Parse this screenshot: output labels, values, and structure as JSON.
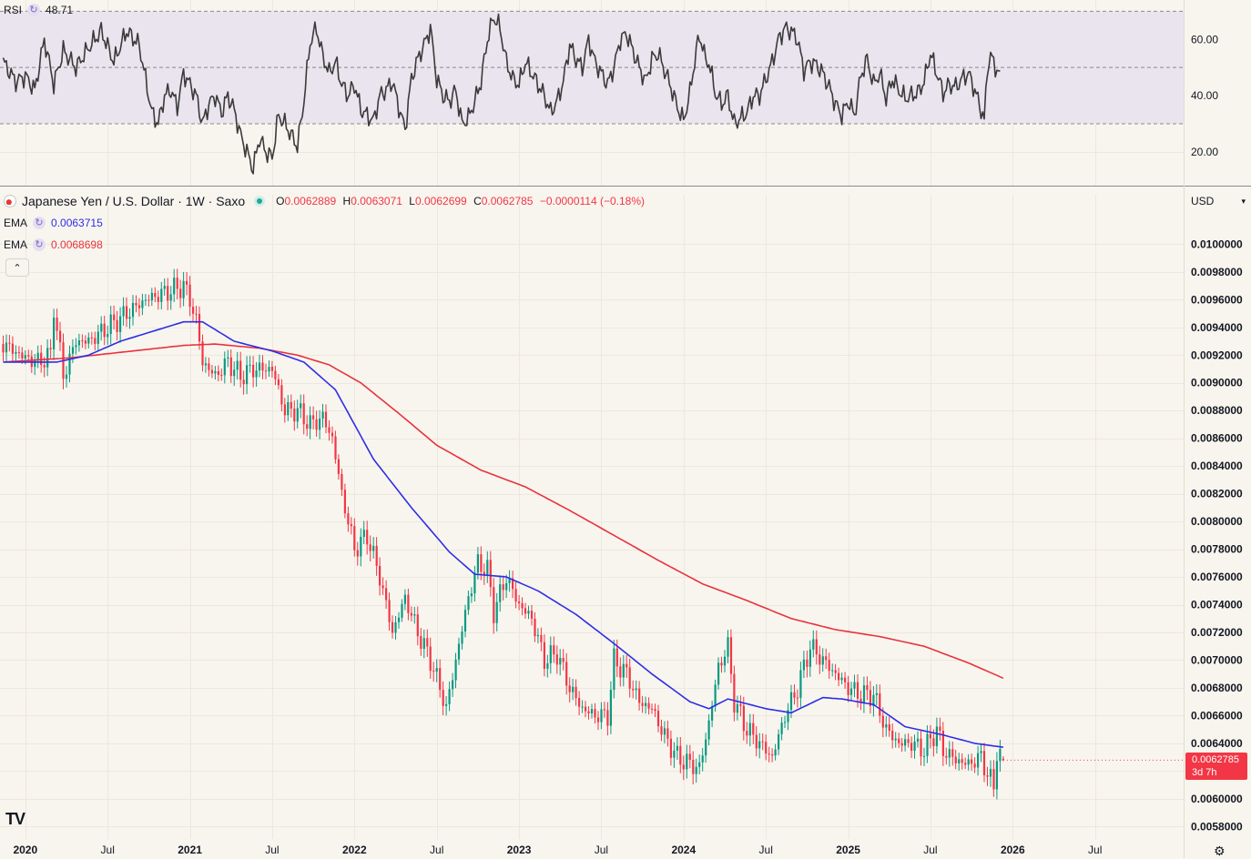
{
  "rsi": {
    "label": "RSI",
    "value": "48.71",
    "ticks": [
      "60.00",
      "40.00",
      "20.00"
    ],
    "tick_values": [
      60,
      40,
      20
    ],
    "upper_band": 70,
    "lower_band": 30,
    "mid_band": 50,
    "range": [
      8,
      74
    ],
    "line_color": "#3a3a3a",
    "band_fill": "#e9e4ed"
  },
  "main": {
    "symbol": "Japanese Yen / U.S. Dollar · 1W · Saxo",
    "ohlc": {
      "o_label": "O",
      "o": "0.0062889",
      "h_label": "H",
      "h": "0.0063071",
      "l_label": "L",
      "l": "0.0062699",
      "c_label": "C",
      "c": "0.0062785",
      "change": "−0.0000114 (−0.18%)"
    },
    "ema1": {
      "label": "EMA",
      "value": "0.0063715",
      "color": "#2e2ee6"
    },
    "ema2": {
      "label": "EMA",
      "value": "0.0068698",
      "color": "#e8323c"
    },
    "currency": "USD",
    "collapse_symbol": "⌃",
    "price_tag": {
      "price": "0.0062785",
      "countdown": "3d 7h"
    },
    "logo": "TV",
    "up_color": "#089981",
    "down_color": "#f23645"
  },
  "chart_data": {
    "type": "candlestick",
    "interval": "1W",
    "ylim": [
      0.00571,
      0.01016
    ],
    "y_ticks": [
      "0.0100000",
      "0.0098000",
      "0.0096000",
      "0.0094000",
      "0.0092000",
      "0.0090000",
      "0.0088000",
      "0.0086000",
      "0.0084000",
      "0.0082000",
      "0.0080000",
      "0.0078000",
      "0.0076000",
      "0.0074000",
      "0.0072000",
      "0.0070000",
      "0.0068000",
      "0.0066000",
      "0.0064000",
      "0.0062000",
      "0.0060000",
      "0.0058000"
    ],
    "x_ticks": [
      "2020",
      "Jul",
      "2021",
      "Jul",
      "2022",
      "Jul",
      "2023",
      "Jul",
      "2024",
      "Jul",
      "2025",
      "Jul",
      "2026",
      "Jul"
    ],
    "x_tick_weeks": [
      0,
      26,
      52,
      78,
      104,
      130,
      156,
      182,
      208,
      234,
      260,
      286,
      312,
      338
    ],
    "x_weeks_range": [
      -8,
      366
    ],
    "first_week": -7,
    "close_anchors": [
      [
        -7,
        0.00928
      ],
      [
        0,
        0.00918
      ],
      [
        4,
        0.00915
      ],
      [
        8,
        0.0092
      ],
      [
        9,
        0.00955
      ],
      [
        12,
        0.00905
      ],
      [
        16,
        0.0093
      ],
      [
        20,
        0.0093
      ],
      [
        26,
        0.0094
      ],
      [
        32,
        0.0095
      ],
      [
        38,
        0.0096
      ],
      [
        44,
        0.00965
      ],
      [
        50,
        0.0097
      ],
      [
        52,
        0.0096
      ],
      [
        54,
        0.00945
      ],
      [
        56,
        0.00915
      ],
      [
        60,
        0.00905
      ],
      [
        64,
        0.00915
      ],
      [
        68,
        0.00905
      ],
      [
        72,
        0.0091
      ],
      [
        78,
        0.0091
      ],
      [
        82,
        0.0088
      ],
      [
        86,
        0.0088
      ],
      [
        90,
        0.0087
      ],
      [
        94,
        0.00875
      ],
      [
        97,
        0.0086
      ],
      [
        100,
        0.0082
      ],
      [
        104,
        0.0078
      ],
      [
        108,
        0.0079
      ],
      [
        112,
        0.0076
      ],
      [
        116,
        0.0072
      ],
      [
        120,
        0.00745
      ],
      [
        124,
        0.0072
      ],
      [
        128,
        0.007
      ],
      [
        131,
        0.0068
      ],
      [
        133,
        0.00665
      ],
      [
        136,
        0.007
      ],
      [
        140,
        0.00745
      ],
      [
        143,
        0.0077
      ],
      [
        146,
        0.00765
      ],
      [
        148,
        0.00735
      ],
      [
        152,
        0.0076
      ],
      [
        156,
        0.0074
      ],
      [
        160,
        0.0073
      ],
      [
        164,
        0.007
      ],
      [
        168,
        0.00705
      ],
      [
        172,
        0.0068
      ],
      [
        176,
        0.00665
      ],
      [
        180,
        0.0066
      ],
      [
        184,
        0.0066
      ],
      [
        186,
        0.007
      ],
      [
        190,
        0.0069
      ],
      [
        194,
        0.0067
      ],
      [
        198,
        0.00665
      ],
      [
        202,
        0.00645
      ],
      [
        206,
        0.0063
      ],
      [
        210,
        0.00625
      ],
      [
        213,
        0.00622
      ],
      [
        216,
        0.00655
      ],
      [
        219,
        0.00695
      ],
      [
        222,
        0.0071
      ],
      [
        224,
        0.0067
      ],
      [
        228,
        0.0065
      ],
      [
        232,
        0.0064
      ],
      [
        236,
        0.0063
      ],
      [
        240,
        0.0066
      ],
      [
        244,
        0.0068
      ],
      [
        248,
        0.0071
      ],
      [
        252,
        0.007
      ],
      [
        256,
        0.0069
      ],
      [
        260,
        0.0068
      ],
      [
        264,
        0.00675
      ],
      [
        268,
        0.00675
      ],
      [
        272,
        0.0065
      ],
      [
        276,
        0.0064
      ],
      [
        280,
        0.0064
      ],
      [
        284,
        0.00635
      ],
      [
        288,
        0.0065
      ],
      [
        290,
        0.00635
      ],
      [
        294,
        0.00628
      ],
      [
        298,
        0.00625
      ],
      [
        302,
        0.0063
      ],
      [
        304,
        0.00618
      ],
      [
        306,
        0.00608
      ],
      [
        307,
        0.00635
      ],
      [
        308,
        0.00632
      ],
      [
        309,
        0.006285
      ]
    ],
    "ema_short_anchors": [
      [
        -7,
        0.00915
      ],
      [
        10,
        0.00915
      ],
      [
        20,
        0.0092
      ],
      [
        30,
        0.0093
      ],
      [
        40,
        0.00937
      ],
      [
        50,
        0.00944
      ],
      [
        56,
        0.00944
      ],
      [
        66,
        0.0093
      ],
      [
        78,
        0.00923
      ],
      [
        88,
        0.00915
      ],
      [
        98,
        0.00895
      ],
      [
        110,
        0.00845
      ],
      [
        122,
        0.0081
      ],
      [
        134,
        0.00778
      ],
      [
        142,
        0.00762
      ],
      [
        152,
        0.0076
      ],
      [
        162,
        0.0075
      ],
      [
        174,
        0.00733
      ],
      [
        186,
        0.00712
      ],
      [
        198,
        0.0069
      ],
      [
        210,
        0.0067
      ],
      [
        216,
        0.00665
      ],
      [
        222,
        0.00672
      ],
      [
        234,
        0.00665
      ],
      [
        242,
        0.00662
      ],
      [
        252,
        0.00673
      ],
      [
        258,
        0.00672
      ],
      [
        268,
        0.00668
      ],
      [
        278,
        0.00652
      ],
      [
        290,
        0.00646
      ],
      [
        300,
        0.0064
      ],
      [
        309,
        0.0063715
      ]
    ],
    "ema_long_anchors": [
      [
        -7,
        0.00915
      ],
      [
        14,
        0.00918
      ],
      [
        30,
        0.00922
      ],
      [
        50,
        0.00927
      ],
      [
        60,
        0.00928
      ],
      [
        74,
        0.00925
      ],
      [
        86,
        0.0092
      ],
      [
        96,
        0.00913
      ],
      [
        106,
        0.009
      ],
      [
        118,
        0.00878
      ],
      [
        130,
        0.00855
      ],
      [
        144,
        0.00837
      ],
      [
        158,
        0.00825
      ],
      [
        172,
        0.00808
      ],
      [
        186,
        0.0079
      ],
      [
        200,
        0.00772
      ],
      [
        214,
        0.00755
      ],
      [
        228,
        0.00743
      ],
      [
        242,
        0.0073
      ],
      [
        256,
        0.00722
      ],
      [
        270,
        0.00717
      ],
      [
        284,
        0.0071
      ],
      [
        298,
        0.00698
      ],
      [
        309,
        0.0068698
      ]
    ],
    "rsi_anchors": [
      [
        -7,
        52
      ],
      [
        -3,
        45
      ],
      [
        0,
        47
      ],
      [
        3,
        42
      ],
      [
        6,
        60
      ],
      [
        9,
        44
      ],
      [
        12,
        56
      ],
      [
        16,
        50
      ],
      [
        20,
        57
      ],
      [
        24,
        63
      ],
      [
        28,
        52
      ],
      [
        32,
        63
      ],
      [
        36,
        58
      ],
      [
        38,
        46
      ],
      [
        40,
        34
      ],
      [
        42,
        30
      ],
      [
        44,
        40
      ],
      [
        46,
        42
      ],
      [
        48,
        36
      ],
      [
        50,
        48
      ],
      [
        52,
        44
      ],
      [
        54,
        40
      ],
      [
        56,
        30
      ],
      [
        58,
        37
      ],
      [
        60,
        40
      ],
      [
        62,
        34
      ],
      [
        64,
        40
      ],
      [
        66,
        35
      ],
      [
        68,
        26
      ],
      [
        70,
        20
      ],
      [
        72,
        14
      ],
      [
        74,
        25
      ],
      [
        76,
        20
      ],
      [
        78,
        18
      ],
      [
        80,
        33
      ],
      [
        82,
        30
      ],
      [
        84,
        26
      ],
      [
        86,
        22
      ],
      [
        88,
        38
      ],
      [
        90,
        59
      ],
      [
        92,
        64
      ],
      [
        94,
        54
      ],
      [
        96,
        48
      ],
      [
        98,
        52
      ],
      [
        100,
        44
      ],
      [
        102,
        40
      ],
      [
        104,
        44
      ],
      [
        106,
        35
      ],
      [
        108,
        33
      ],
      [
        110,
        31
      ],
      [
        112,
        40
      ],
      [
        114,
        42
      ],
      [
        116,
        45
      ],
      [
        118,
        36
      ],
      [
        120,
        28
      ],
      [
        122,
        46
      ],
      [
        124,
        53
      ],
      [
        126,
        58
      ],
      [
        128,
        64
      ],
      [
        130,
        46
      ],
      [
        132,
        40
      ],
      [
        134,
        38
      ],
      [
        136,
        42
      ],
      [
        138,
        30
      ],
      [
        140,
        32
      ],
      [
        142,
        38
      ],
      [
        144,
        45
      ],
      [
        146,
        60
      ],
      [
        148,
        68
      ],
      [
        150,
        64
      ],
      [
        152,
        52
      ],
      [
        154,
        46
      ],
      [
        156,
        44
      ],
      [
        158,
        52
      ],
      [
        160,
        48
      ],
      [
        162,
        44
      ],
      [
        164,
        40
      ],
      [
        166,
        34
      ],
      [
        168,
        38
      ],
      [
        170,
        45
      ],
      [
        172,
        58
      ],
      [
        174,
        53
      ],
      [
        176,
        50
      ],
      [
        178,
        60
      ],
      [
        180,
        52
      ],
      [
        182,
        48
      ],
      [
        184,
        44
      ],
      [
        186,
        50
      ],
      [
        188,
        60
      ],
      [
        190,
        62
      ],
      [
        192,
        56
      ],
      [
        194,
        50
      ],
      [
        196,
        45
      ],
      [
        198,
        53
      ],
      [
        200,
        55
      ],
      [
        202,
        49
      ],
      [
        204,
        43
      ],
      [
        206,
        36
      ],
      [
        208,
        31
      ],
      [
        210,
        41
      ],
      [
        212,
        56
      ],
      [
        213,
        61
      ],
      [
        214,
        58
      ],
      [
        215,
        52
      ],
      [
        216,
        52
      ],
      [
        218,
        41
      ],
      [
        220,
        37
      ],
      [
        222,
        40
      ],
      [
        224,
        30
      ],
      [
        226,
        32
      ],
      [
        228,
        34
      ],
      [
        230,
        40
      ],
      [
        232,
        40
      ],
      [
        234,
        46
      ],
      [
        236,
        52
      ],
      [
        238,
        60
      ],
      [
        240,
        64
      ],
      [
        242,
        63
      ],
      [
        244,
        60
      ],
      [
        246,
        49
      ],
      [
        248,
        52
      ],
      [
        250,
        51
      ],
      [
        252,
        48
      ],
      [
        254,
        43
      ],
      [
        256,
        37
      ],
      [
        258,
        33
      ],
      [
        260,
        38
      ],
      [
        262,
        33
      ],
      [
        264,
        47
      ],
      [
        266,
        53
      ],
      [
        268,
        44
      ],
      [
        270,
        48
      ],
      [
        272,
        39
      ],
      [
        274,
        46
      ],
      [
        276,
        42
      ],
      [
        278,
        39
      ],
      [
        280,
        40
      ],
      [
        282,
        41
      ],
      [
        284,
        45
      ],
      [
        286,
        55
      ],
      [
        288,
        48
      ],
      [
        290,
        41
      ],
      [
        292,
        44
      ],
      [
        294,
        43
      ],
      [
        296,
        46
      ],
      [
        298,
        48
      ],
      [
        300,
        42
      ],
      [
        302,
        35
      ],
      [
        303,
        31
      ],
      [
        304,
        50
      ],
      [
        305,
        54
      ],
      [
        306,
        52
      ],
      [
        307,
        49
      ],
      [
        308,
        48.71
      ]
    ]
  }
}
